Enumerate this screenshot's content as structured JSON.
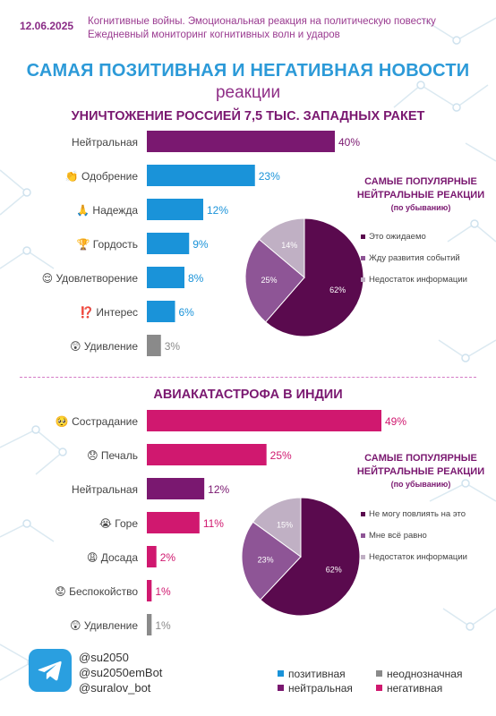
{
  "header": {
    "date": "12.06.2025",
    "line1": "Когнитивные войны. Эмоциональная реакция на политическую повестку",
    "line2": "Ежедневный мониторинг когнитивных волн и ударов"
  },
  "title": "САМАЯ ПОЗИТИВНАЯ И НЕГАТИВНАЯ НОВОСТИ",
  "subtitle": "реакции",
  "colors": {
    "positive": "#1a93d9",
    "neutral": "#7a1870",
    "negative": "#d0186f",
    "ambiguous": "#8a8a8a",
    "pie_dark": "#5a0a4e",
    "pie_mid": "#8e5596",
    "pie_light": "#c0b0c4"
  },
  "section1": {
    "pie_title": "САМЫЕ ПОПУЛЯРНЫЕ НЕЙТРАЛЬНЫЕ РЕАКЦИИ",
    "pie_sub": "(по убыванию)"
  },
  "section2": {
    "pie_title": "САМЫЕ ПОПУЛЯРНЫЕ НЕЙТРАЛЬНЫЕ РЕАКЦИИ",
    "pie_sub": "(по убыванию)"
  },
  "chart_data": [
    {
      "type": "bar",
      "title": "УНИЧТОЖЕНИЕ РОССИЕЙ 7,5 ТЫС. ЗАПАДНЫХ РАКЕТ",
      "categories": [
        "Нейтральная",
        "Одобрение",
        "Надежда",
        "Гордость",
        "Удовлетворение",
        "Интерес",
        "Удивление"
      ],
      "emoji": [
        "",
        "👏",
        "🙏",
        "🏆",
        "😌",
        "⁉️",
        "😲"
      ],
      "values": [
        40,
        23,
        12,
        9,
        8,
        6,
        3
      ],
      "labels": [
        "40%",
        "23%",
        "12%",
        "9%",
        "8%",
        "6%",
        "3%"
      ],
      "groups": [
        "neutral",
        "positive",
        "positive",
        "positive",
        "positive",
        "positive",
        "ambiguous"
      ]
    },
    {
      "type": "pie",
      "slices": [
        {
          "name": "Это ожидаемо",
          "value": 62,
          "label": "62%"
        },
        {
          "name": "Жду развития событий",
          "value": 25,
          "label": "25%"
        },
        {
          "name": "Недостаток информации",
          "value": 14,
          "label": "14%"
        }
      ]
    },
    {
      "type": "bar",
      "title": "АВИАКАТАСТРОФА В ИНДИИ",
      "categories": [
        "Сострадание",
        "Печаль",
        "Нейтральная",
        "Горе",
        "Досада",
        "Беспокойство",
        "Удивление"
      ],
      "emoji": [
        "🥺",
        "😞",
        "",
        "😭",
        "😩",
        "😟",
        "😲"
      ],
      "values": [
        49,
        25,
        12,
        11,
        2,
        1,
        1
      ],
      "labels": [
        "49%",
        "25%",
        "12%",
        "11%",
        "2%",
        "1%",
        "1%"
      ],
      "groups": [
        "negative",
        "negative",
        "neutral",
        "negative",
        "negative",
        "negative",
        "ambiguous"
      ]
    },
    {
      "type": "pie",
      "slices": [
        {
          "name": "Не могу повлиять на это",
          "value": 62,
          "label": "62%"
        },
        {
          "name": "Мне всё равно",
          "value": 23,
          "label": "23%"
        },
        {
          "name": "Недостаток информации",
          "value": 15,
          "label": "15%"
        }
      ]
    }
  ],
  "legend": {
    "positive": "позитивная",
    "ambiguous": "неоднозначная",
    "neutral": "нейтральная",
    "negative": "негативная"
  },
  "footer": {
    "icon": "telegram-icon",
    "handles": [
      "@su2050",
      "@su2050emBot",
      "@suralov_bot"
    ]
  }
}
